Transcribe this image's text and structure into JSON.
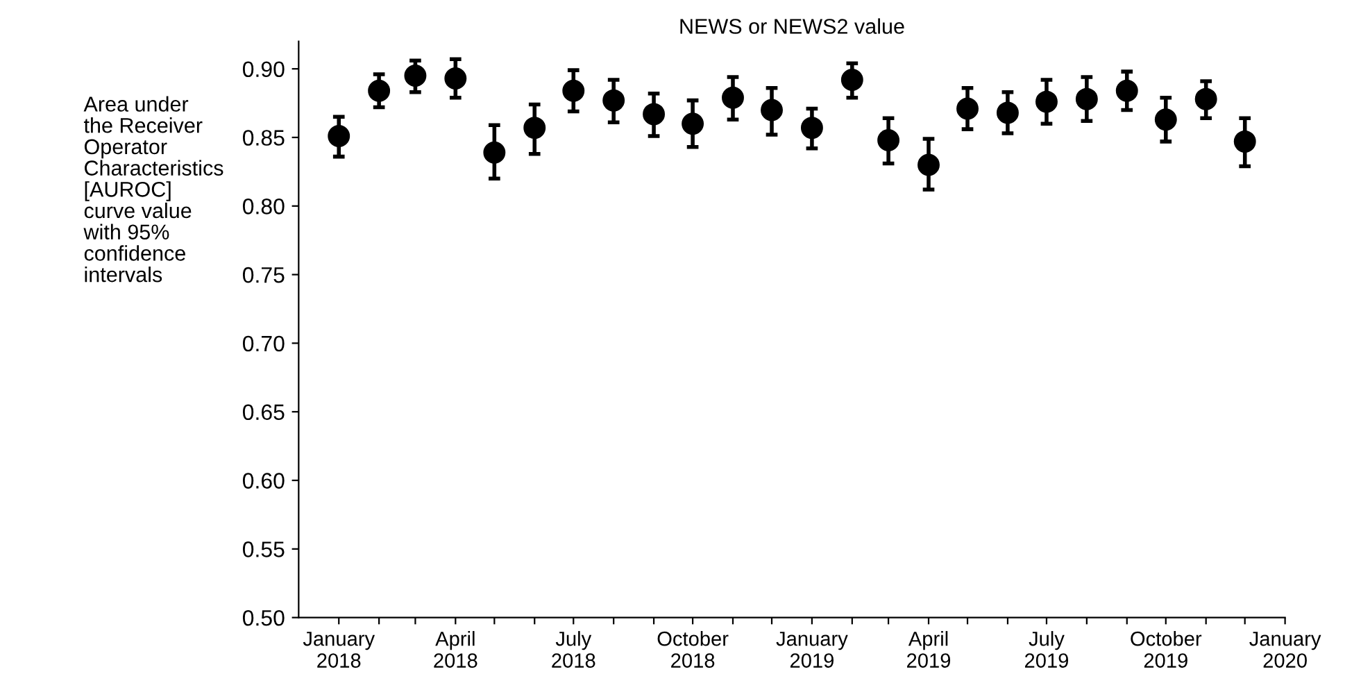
{
  "chart_data": {
    "type": "scatter",
    "title": "NEWS or NEWS2 value",
    "ylabel": "Area under\nthe Receiver\nOperator\nCharacteristics\n[AUROC]\ncurve value\nwith 95%\nconfidence\nintervals",
    "x": [
      "2018-01",
      "2018-02",
      "2018-03",
      "2018-04",
      "2018-05",
      "2018-06",
      "2018-07",
      "2018-08",
      "2018-09",
      "2018-10",
      "2018-11",
      "2018-12",
      "2019-01",
      "2019-02",
      "2019-03",
      "2019-04",
      "2019-05",
      "2019-06",
      "2019-07",
      "2019-08",
      "2019-09",
      "2019-10",
      "2019-11",
      "2019-12"
    ],
    "series": [
      {
        "color": "#000000",
        "values": [
          0.851,
          0.884,
          0.895,
          0.893,
          0.839,
          0.857,
          0.884,
          0.877,
          0.867,
          0.86,
          0.879,
          0.87,
          0.857,
          0.892,
          0.848,
          0.83,
          0.871,
          0.868,
          0.876,
          0.878,
          0.884,
          0.863,
          0.878,
          0.847
        ],
        "errors": [
          [
            0.836,
            0.865
          ],
          [
            0.872,
            0.896
          ],
          [
            0.883,
            0.906
          ],
          [
            0.879,
            0.907
          ],
          [
            0.82,
            0.859
          ],
          [
            0.838,
            0.874
          ],
          [
            0.869,
            0.899
          ],
          [
            0.861,
            0.892
          ],
          [
            0.851,
            0.882
          ],
          [
            0.843,
            0.877
          ],
          [
            0.863,
            0.894
          ],
          [
            0.852,
            0.886
          ],
          [
            0.842,
            0.871
          ],
          [
            0.879,
            0.904
          ],
          [
            0.831,
            0.864
          ],
          [
            0.812,
            0.849
          ],
          [
            0.856,
            0.886
          ],
          [
            0.853,
            0.883
          ],
          [
            0.86,
            0.892
          ],
          [
            0.862,
            0.894
          ],
          [
            0.87,
            0.898
          ],
          [
            0.847,
            0.879
          ],
          [
            0.864,
            0.891
          ],
          [
            0.829,
            0.864
          ]
        ]
      }
    ],
    "marker": "circle",
    "xlim": [
      "2017-12",
      "2020-01"
    ],
    "xticks": [
      {
        "value": "2018-01",
        "label": "January\n2018"
      },
      {
        "value": "2018-02",
        "label": null
      },
      {
        "value": "2018-03",
        "label": null
      },
      {
        "value": "2018-04",
        "label": "April\n2018"
      },
      {
        "value": "2018-05",
        "label": null
      },
      {
        "value": "2018-06",
        "label": null
      },
      {
        "value": "2018-07",
        "label": "July\n2018"
      },
      {
        "value": "2018-08",
        "label": null
      },
      {
        "value": "2018-09",
        "label": null
      },
      {
        "value": "2018-10",
        "label": "October\n2018"
      },
      {
        "value": "2018-11",
        "label": null
      },
      {
        "value": "2018-12",
        "label": null
      },
      {
        "value": "2019-01",
        "label": "January\n2019"
      },
      {
        "value": "2019-02",
        "label": null
      },
      {
        "value": "2019-03",
        "label": null
      },
      {
        "value": "2019-04",
        "label": "April\n2019"
      },
      {
        "value": "2019-05",
        "label": null
      },
      {
        "value": "2019-06",
        "label": null
      },
      {
        "value": "2019-07",
        "label": "July\n2019"
      },
      {
        "value": "2019-08",
        "label": null
      },
      {
        "value": "2019-09",
        "label": null
      },
      {
        "value": "2019-10",
        "label": "October\n2019"
      },
      {
        "value": "2019-11",
        "label": null
      },
      {
        "value": "2019-12",
        "label": null
      },
      {
        "value": "2020-01",
        "label": "January\n2020"
      }
    ],
    "ylim": [
      0.5,
      0.92
    ],
    "yticks": [
      {
        "value": 0.5,
        "label": "0.50"
      },
      {
        "value": 0.55,
        "label": "0.55"
      },
      {
        "value": 0.6,
        "label": "0.60"
      },
      {
        "value": 0.65,
        "label": "0.65"
      },
      {
        "value": 0.7,
        "label": "0.70"
      },
      {
        "value": 0.75,
        "label": "0.75"
      },
      {
        "value": 0.8,
        "label": "0.80"
      },
      {
        "value": 0.85,
        "label": "0.85"
      },
      {
        "value": 0.9,
        "label": "0.90"
      }
    ],
    "grid": false
  }
}
